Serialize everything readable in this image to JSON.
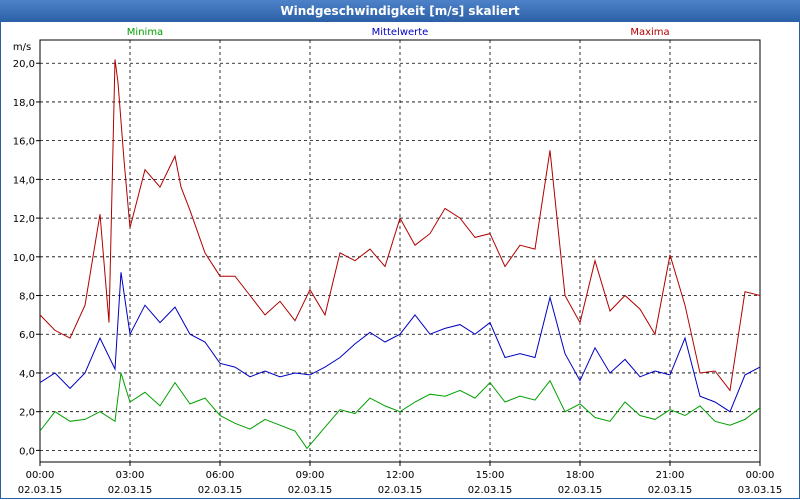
{
  "window": {
    "title": "Windgeschwindigkeit [m/s] skaliert"
  },
  "chart_data": {
    "type": "line",
    "title": "Windgeschwindigkeit [m/s] skaliert",
    "ylabel": "m/s",
    "xlabel": "",
    "ylim": [
      -0.6,
      21.2
    ],
    "xlim": [
      0,
      24
    ],
    "grid": true,
    "yticks": [
      "0,0",
      "2,0",
      "4,0",
      "6,0",
      "8,0",
      "10,0",
      "12,0",
      "14,0",
      "16,0",
      "18,0",
      "20,0"
    ],
    "ytick_values": [
      0,
      2,
      4,
      6,
      8,
      10,
      12,
      14,
      16,
      18,
      20
    ],
    "xticks": [
      {
        "time": "00:00",
        "date": "02.03.15"
      },
      {
        "time": "03:00",
        "date": "02.03.15"
      },
      {
        "time": "06:00",
        "date": "02.03.15"
      },
      {
        "time": "09:00",
        "date": "02.03.15"
      },
      {
        "time": "12:00",
        "date": "02.03.15"
      },
      {
        "time": "15:00",
        "date": "02.03.15"
      },
      {
        "time": "18:00",
        "date": "02.03.15"
      },
      {
        "time": "21:00",
        "date": "02.03.15"
      },
      {
        "time": "00:00",
        "date": "03.03.15"
      }
    ],
    "xtick_values": [
      0,
      3,
      6,
      9,
      12,
      15,
      18,
      21,
      24
    ],
    "series": [
      {
        "name": "Minima",
        "color": "#00a000",
        "x": [
          0,
          0.5,
          1,
          1.5,
          2,
          2.5,
          2.7,
          3,
          3.5,
          4,
          4.5,
          5,
          5.5,
          6,
          6.5,
          7,
          7.5,
          8,
          8.5,
          8.9,
          9.5,
          10,
          10.5,
          11,
          11.5,
          12,
          12.5,
          13,
          13.5,
          14,
          14.5,
          15,
          15.5,
          16,
          16.5,
          17,
          17.5,
          18,
          18.5,
          19,
          19.5,
          20,
          20.5,
          21,
          21.5,
          22,
          22.5,
          23,
          23.5,
          24
        ],
        "values": [
          1.0,
          2.0,
          1.5,
          1.6,
          2.0,
          1.5,
          4.0,
          2.5,
          3.0,
          2.3,
          3.5,
          2.4,
          2.7,
          1.8,
          1.4,
          1.1,
          1.6,
          1.3,
          1.0,
          0.1,
          1.2,
          2.1,
          1.9,
          2.7,
          2.3,
          2.0,
          2.5,
          2.9,
          2.8,
          3.1,
          2.7,
          3.5,
          2.5,
          2.8,
          2.6,
          3.6,
          2.0,
          2.4,
          1.7,
          1.5,
          2.5,
          1.8,
          1.6,
          2.1,
          1.8,
          2.3,
          1.5,
          1.3,
          1.6,
          2.2
        ]
      },
      {
        "name": "Mittelwerte",
        "color": "#0000c0",
        "x": [
          0,
          0.5,
          1,
          1.5,
          2,
          2.5,
          2.7,
          3,
          3.5,
          4,
          4.5,
          5,
          5.5,
          6,
          6.5,
          7,
          7.5,
          8,
          8.5,
          9,
          9.5,
          10,
          10.5,
          11,
          11.5,
          12,
          12.5,
          13,
          13.5,
          14,
          14.5,
          15,
          15.5,
          16,
          16.5,
          17,
          17.5,
          18,
          18.5,
          19,
          19.5,
          20,
          20.5,
          21,
          21.5,
          22,
          22.5,
          23,
          23.5,
          24
        ],
        "values": [
          3.5,
          4.0,
          3.2,
          4.0,
          5.8,
          4.2,
          9.2,
          6.0,
          7.5,
          6.6,
          7.4,
          6.0,
          5.6,
          4.5,
          4.3,
          3.8,
          4.1,
          3.8,
          4.0,
          3.9,
          4.3,
          4.8,
          5.5,
          6.1,
          5.6,
          6.0,
          7.0,
          6.0,
          6.3,
          6.5,
          6.0,
          6.6,
          4.8,
          5.0,
          4.8,
          7.9,
          5.0,
          3.6,
          5.3,
          4.0,
          4.7,
          3.8,
          4.1,
          3.9,
          5.8,
          2.8,
          2.5,
          2.0,
          3.9,
          4.3
        ]
      },
      {
        "name": "Maxima",
        "color": "#b00000",
        "x": [
          0,
          0.5,
          1,
          1.5,
          2,
          2.3,
          2.5,
          2.6,
          2.8,
          3,
          3.5,
          4,
          4.5,
          4.7,
          5,
          5.5,
          6,
          6.5,
          7,
          7.5,
          8,
          8.5,
          9,
          9.5,
          10,
          10.5,
          11,
          11.5,
          12,
          12.5,
          13,
          13.5,
          14,
          14.5,
          15,
          15.5,
          16,
          16.5,
          17,
          17.5,
          18,
          18.5,
          19,
          19.5,
          20,
          20.5,
          21,
          21.5,
          22,
          22.5,
          23,
          23.5,
          24
        ],
        "values": [
          7.0,
          6.2,
          5.8,
          7.5,
          12.2,
          6.6,
          20.2,
          19.0,
          15.0,
          11.5,
          14.5,
          13.6,
          15.2,
          13.6,
          12.4,
          10.2,
          9.0,
          9.0,
          8.0,
          7.0,
          7.7,
          6.7,
          8.3,
          7.0,
          10.2,
          9.8,
          10.4,
          9.5,
          12.0,
          10.6,
          11.2,
          12.5,
          12.0,
          11.0,
          11.2,
          9.5,
          10.6,
          10.4,
          15.5,
          8.0,
          6.6,
          9.8,
          7.2,
          8.0,
          7.3,
          6.0,
          10.1,
          7.5,
          4.0,
          4.1,
          3.1,
          8.2,
          8.0
        ]
      }
    ]
  }
}
